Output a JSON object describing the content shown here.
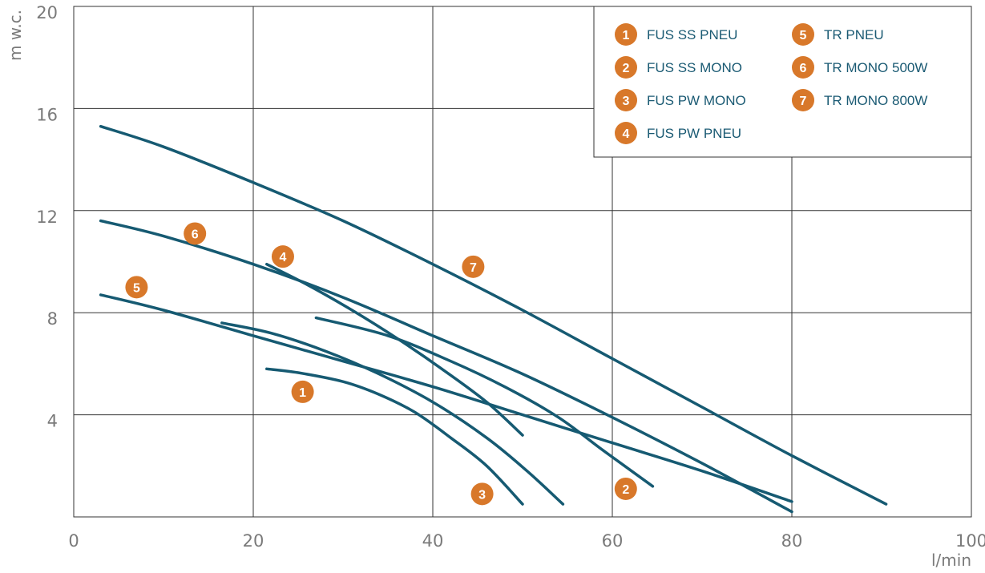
{
  "chart_data": {
    "type": "line",
    "xlabel": "l/min",
    "ylabel": "m w.c.",
    "xlim": [
      0,
      100
    ],
    "ylim": [
      0,
      20
    ],
    "x_ticks": [
      "0",
      "20",
      "40",
      "60",
      "80",
      "100"
    ],
    "y_ticks": [
      "4",
      "8",
      "12",
      "16",
      "20"
    ],
    "grid": true,
    "legend_position": "top-right",
    "colors": {
      "line": "#165a72",
      "badge": "#d8782a",
      "grid": "#333333",
      "text": "#1a5a73"
    },
    "series": [
      {
        "id": "1",
        "name": "FUS SS PNEU",
        "label_at": [
          25.5,
          4.9
        ],
        "x": [
          21.5,
          25,
          30,
          34,
          38,
          42,
          46,
          50
        ],
        "y": [
          5.8,
          5.65,
          5.3,
          4.8,
          4.1,
          3.1,
          2.0,
          0.5
        ]
      },
      {
        "id": "2",
        "name": "FUS SS MONO",
        "label_at": [
          61.5,
          1.1
        ],
        "x": [
          27,
          35,
          42,
          48,
          54,
          59,
          64.5
        ],
        "y": [
          7.8,
          7.1,
          6.1,
          5.1,
          3.9,
          2.6,
          1.2
        ]
      },
      {
        "id": "3",
        "name": "FUS PW MONO",
        "label_at": [
          45.5,
          0.9
        ],
        "x": [
          16.5,
          22,
          28,
          34,
          40,
          46,
          50.5,
          54.5
        ],
        "y": [
          7.6,
          7.2,
          6.5,
          5.6,
          4.5,
          3.1,
          1.8,
          0.5
        ]
      },
      {
        "id": "4",
        "name": "FUS PW PNEU",
        "label_at": [
          23.3,
          10.2
        ],
        "x": [
          21.5,
          26,
          31,
          36,
          41,
          46,
          50
        ],
        "y": [
          9.9,
          9.1,
          8.1,
          7.0,
          5.8,
          4.5,
          3.2
        ]
      },
      {
        "id": "5",
        "name": "TR PNEU",
        "label_at": [
          7,
          9.0
        ],
        "x": [
          3,
          10,
          20,
          30,
          40,
          50,
          60,
          70,
          80
        ],
        "y": [
          8.7,
          8.1,
          7.1,
          6.1,
          5.1,
          4.0,
          2.9,
          1.8,
          0.6
        ]
      },
      {
        "id": "6",
        "name": "TR MONO 500W",
        "label_at": [
          13.5,
          11.1
        ],
        "x": [
          3,
          10,
          20,
          30,
          40,
          50,
          60,
          70,
          80
        ],
        "y": [
          11.6,
          11.0,
          9.9,
          8.6,
          7.1,
          5.6,
          3.9,
          2.1,
          0.2
        ]
      },
      {
        "id": "7",
        "name": "TR MONO 800W",
        "label_at": [
          44.5,
          9.8
        ],
        "x": [
          3,
          10,
          20,
          30,
          40,
          50,
          60,
          70,
          80,
          90.5
        ],
        "y": [
          15.3,
          14.5,
          13.1,
          11.6,
          9.9,
          8.1,
          6.2,
          4.3,
          2.4,
          0.5
        ]
      }
    ]
  }
}
